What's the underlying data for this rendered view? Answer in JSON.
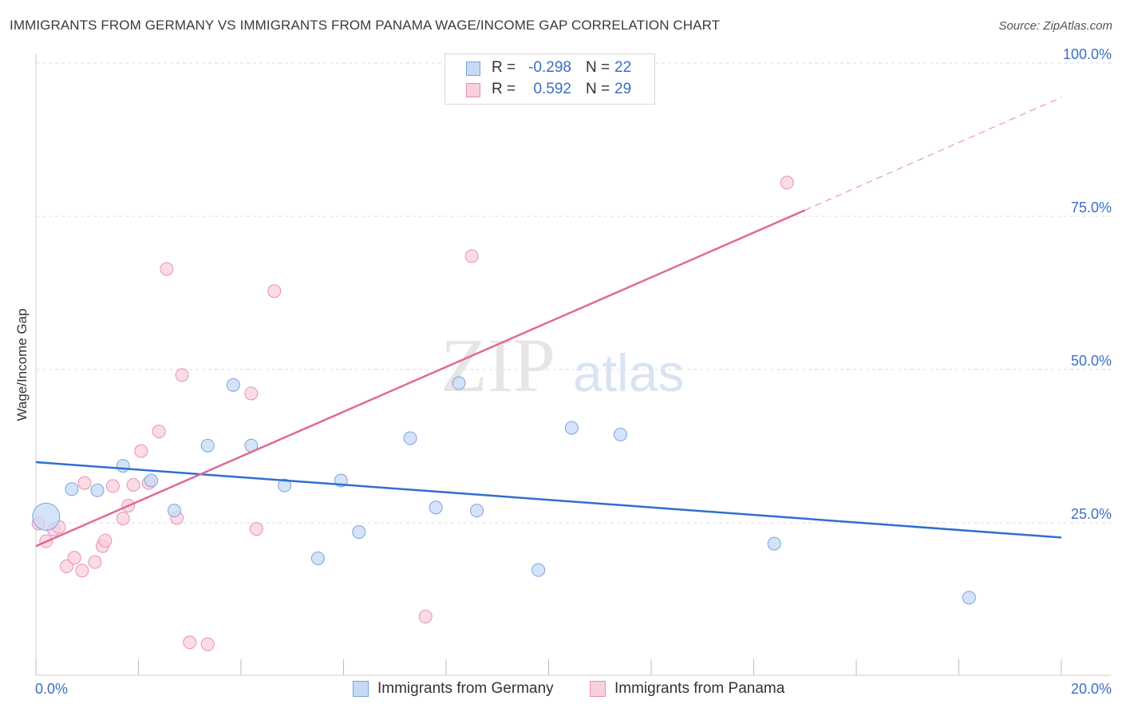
{
  "title": "IMMIGRANTS FROM GERMANY VS IMMIGRANTS FROM PANAMA WAGE/INCOME GAP CORRELATION CHART",
  "source": "Source: ZipAtlas.com",
  "watermark": {
    "zip": "ZIP",
    "atlas": "atlas"
  },
  "legend": {
    "germany": {
      "r_label": "R =",
      "r_value": "-0.298",
      "n_label": "N =",
      "n_value": "22"
    },
    "panama": {
      "r_label": "R =",
      "r_value": "0.592",
      "n_label": "N =",
      "n_value": "29"
    }
  },
  "colors": {
    "germany_fill": "#c6d9f6",
    "germany_stroke": "#7aa3dc",
    "germany_line": "#2f6fd0",
    "panama_fill": "#f9cfdc",
    "panama_stroke": "#e792ad",
    "panama_line": "#e06a94",
    "tick_label": "#3a6fc4",
    "grid": "#dddddd"
  },
  "chart_data": {
    "type": "scatter",
    "title": "IMMIGRANTS FROM GERMANY VS IMMIGRANTS FROM PANAMA WAGE/INCOME GAP CORRELATION CHART",
    "xlabel": "",
    "ylabel": "Wage/Income Gap",
    "xlim": [
      0,
      20
    ],
    "ylim": [
      0,
      102
    ],
    "x_tick_labels": [
      "0.0%",
      "20.0%"
    ],
    "y_ticks": [
      25,
      50,
      75,
      100
    ],
    "y_tick_labels": [
      "25.0%",
      "50.0%",
      "75.0%",
      "100.0%"
    ],
    "grid": true,
    "legend_position": "bottom",
    "series": [
      {
        "name": "Immigrants from Germany",
        "points": [
          {
            "x": 0.2,
            "y": 26.0,
            "big": true
          },
          {
            "x": 0.7,
            "y": 30.5
          },
          {
            "x": 1.2,
            "y": 30.3
          },
          {
            "x": 1.7,
            "y": 34.3
          },
          {
            "x": 2.25,
            "y": 31.9
          },
          {
            "x": 2.7,
            "y": 27.0
          },
          {
            "x": 3.35,
            "y": 37.6
          },
          {
            "x": 3.85,
            "y": 47.5
          },
          {
            "x": 4.2,
            "y": 37.6
          },
          {
            "x": 4.85,
            "y": 31.1
          },
          {
            "x": 5.5,
            "y": 19.2
          },
          {
            "x": 5.95,
            "y": 31.9
          },
          {
            "x": 6.3,
            "y": 23.5
          },
          {
            "x": 7.3,
            "y": 38.8
          },
          {
            "x": 7.8,
            "y": 27.5
          },
          {
            "x": 8.25,
            "y": 47.8
          },
          {
            "x": 8.6,
            "y": 27.0
          },
          {
            "x": 9.8,
            "y": 17.3
          },
          {
            "x": 10.45,
            "y": 40.5
          },
          {
            "x": 11.4,
            "y": 39.4
          },
          {
            "x": 14.4,
            "y": 21.6
          },
          {
            "x": 18.2,
            "y": 12.8
          }
        ],
        "trend": {
          "x": [
            0,
            20
          ],
          "y": [
            34.9,
            22.6
          ]
        }
      },
      {
        "name": "Immigrants from Panama",
        "points": [
          {
            "x": 0.05,
            "y": 24.9
          },
          {
            "x": 0.2,
            "y": 22.0
          },
          {
            "x": 0.35,
            "y": 23.9
          },
          {
            "x": 0.45,
            "y": 24.3
          },
          {
            "x": 0.6,
            "y": 17.9
          },
          {
            "x": 0.75,
            "y": 19.3
          },
          {
            "x": 0.9,
            "y": 17.2
          },
          {
            "x": 0.95,
            "y": 31.5
          },
          {
            "x": 1.15,
            "y": 18.6
          },
          {
            "x": 1.3,
            "y": 21.2
          },
          {
            "x": 1.35,
            "y": 22.1
          },
          {
            "x": 1.5,
            "y": 31.0
          },
          {
            "x": 1.7,
            "y": 25.7
          },
          {
            "x": 1.8,
            "y": 27.8
          },
          {
            "x": 1.9,
            "y": 31.2
          },
          {
            "x": 2.05,
            "y": 36.7
          },
          {
            "x": 2.2,
            "y": 31.5
          },
          {
            "x": 2.4,
            "y": 39.9
          },
          {
            "x": 2.55,
            "y": 66.4
          },
          {
            "x": 2.75,
            "y": 25.8
          },
          {
            "x": 2.85,
            "y": 49.1
          },
          {
            "x": 3.0,
            "y": 5.5
          },
          {
            "x": 3.35,
            "y": 5.2
          },
          {
            "x": 4.2,
            "y": 46.1
          },
          {
            "x": 4.3,
            "y": 24.0
          },
          {
            "x": 4.65,
            "y": 62.8
          },
          {
            "x": 7.6,
            "y": 9.7
          },
          {
            "x": 8.5,
            "y": 68.5
          },
          {
            "x": 14.65,
            "y": 80.5
          }
        ],
        "trend": {
          "x": [
            0,
            15
          ],
          "y": [
            21.2,
            76.0
          ]
        },
        "trend_extension": {
          "x": [
            15,
            20
          ],
          "y": [
            76.0,
            94.4
          ]
        }
      }
    ]
  }
}
